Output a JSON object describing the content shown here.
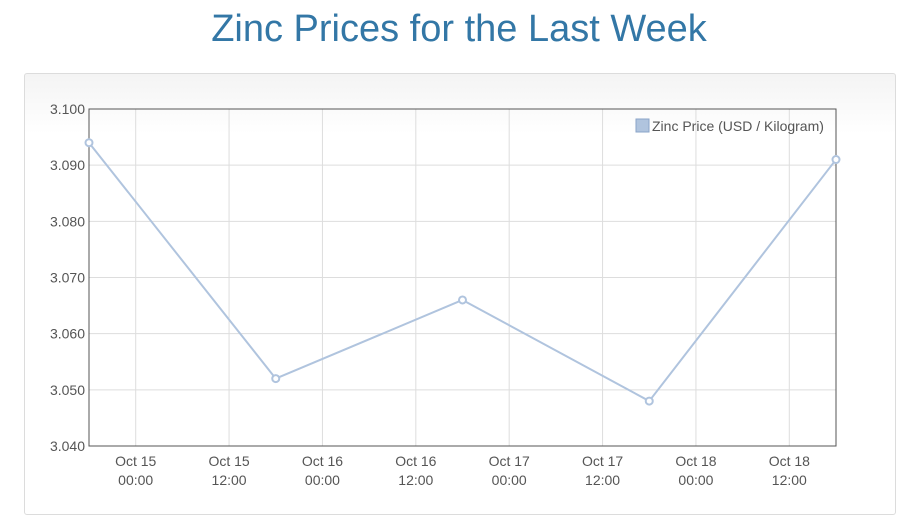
{
  "title": "Zinc Prices for the Last Week",
  "colors": {
    "title": "#3377a6",
    "series": "#b0c4de",
    "grid": "#dddddd",
    "axis": "#555555"
  },
  "chart_data": {
    "type": "line",
    "title": "Zinc Prices for the Last Week",
    "xlabel": "",
    "ylabel": "",
    "ylim": [
      3.04,
      3.1
    ],
    "xlim": [
      "2024-10-14 18:00",
      "2024-10-18 18:00"
    ],
    "y_ticks": [
      "3.040",
      "3.050",
      "3.060",
      "3.070",
      "3.080",
      "3.090",
      "3.100"
    ],
    "x_ticks": [
      {
        "line1": "Oct 15",
        "line2": "00:00",
        "at": "2024-10-15 00:00"
      },
      {
        "line1": "Oct 15",
        "line2": "12:00",
        "at": "2024-10-15 12:00"
      },
      {
        "line1": "Oct 16",
        "line2": "00:00",
        "at": "2024-10-16 00:00"
      },
      {
        "line1": "Oct 16",
        "line2": "12:00",
        "at": "2024-10-16 12:00"
      },
      {
        "line1": "Oct 17",
        "line2": "00:00",
        "at": "2024-10-17 00:00"
      },
      {
        "line1": "Oct 17",
        "line2": "12:00",
        "at": "2024-10-17 12:00"
      },
      {
        "line1": "Oct 18",
        "line2": "00:00",
        "at": "2024-10-18 00:00"
      },
      {
        "line1": "Oct 18",
        "line2": "12:00",
        "at": "2024-10-18 12:00"
      }
    ],
    "grid": true,
    "legend": {
      "position": "top-right"
    },
    "series": [
      {
        "name": "Zinc Price (USD / Kilogram)",
        "points": [
          {
            "x": "2024-10-14 18:00",
            "y": 3.094
          },
          {
            "x": "2024-10-15 18:00",
            "y": 3.052
          },
          {
            "x": "2024-10-16 18:00",
            "y": 3.066
          },
          {
            "x": "2024-10-17 18:00",
            "y": 3.048
          },
          {
            "x": "2024-10-18 18:00",
            "y": 3.091
          }
        ]
      }
    ]
  }
}
